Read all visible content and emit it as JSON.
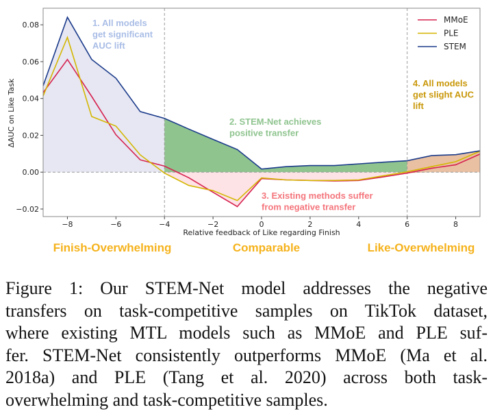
{
  "chart_data": {
    "type": "line",
    "xlabel": "Relative feedback of Like regarding Finish",
    "ylabel": "ΔAUC on Like Task",
    "xlim": [
      -9,
      9
    ],
    "ylim": [
      -0.0241,
      0.089
    ],
    "xticks": [
      -8,
      -6,
      -4,
      -2,
      0,
      2,
      4,
      6,
      8
    ],
    "xtick_labels": [
      "−8",
      "−6",
      "−4",
      "−2",
      "0",
      "2",
      "4",
      "6",
      "8"
    ],
    "yticks": [
      -0.02,
      0.0,
      0.02,
      0.04,
      0.06,
      0.08
    ],
    "ytick_labels": [
      "−0.02",
      "0.00",
      "0.02",
      "0.04",
      "0.06",
      "0.08"
    ],
    "grid": false,
    "legend_position": "top-right",
    "x": [
      -9,
      -8,
      -7,
      -6,
      -5,
      -4,
      -3,
      -2,
      -1,
      0,
      1,
      2,
      3,
      4,
      5,
      6,
      7,
      8,
      9
    ],
    "series": [
      {
        "name": "MMoE",
        "color": "#d6204e",
        "values": [
          0.0432,
          0.0612,
          0.0411,
          0.0203,
          0.0067,
          0.0033,
          -0.003,
          -0.0109,
          -0.0187,
          -0.0035,
          -0.0042,
          -0.0045,
          -0.0048,
          -0.0045,
          -0.0026,
          -0.0005,
          0.0021,
          0.004,
          0.0098
        ]
      },
      {
        "name": "PLE",
        "color": "#d4b600",
        "values": [
          0.0414,
          0.0732,
          0.0302,
          0.025,
          0.0094,
          -0.0005,
          -0.0072,
          -0.01,
          -0.0154,
          -0.0031,
          -0.0042,
          -0.0045,
          -0.0045,
          -0.0042,
          -0.002,
          0.0002,
          0.003,
          0.0057,
          0.0114
        ]
      },
      {
        "name": "STEM",
        "color": "#1a3a8a",
        "values": [
          0.0469,
          0.0841,
          0.0612,
          0.051,
          0.0329,
          0.0292,
          0.0234,
          0.0178,
          0.0123,
          0.0017,
          0.003,
          0.0036,
          0.0036,
          0.0045,
          0.0054,
          0.0062,
          0.009,
          0.0095,
          0.0116
        ]
      }
    ],
    "reference_lines": {
      "horizontal": [
        0.0
      ],
      "vertical": [
        -4,
        6
      ]
    },
    "region_fills": {
      "finish_overwhelming": "#e6e7f2",
      "stem_positive": "#8fc48f",
      "negative": "#fde2e6",
      "like_overwhelming": "#e9c0a2"
    },
    "annotations": [
      {
        "lines": [
          "1. All models",
          "get significant",
          "AUC lift"
        ],
        "color": "#a9bde6"
      },
      {
        "lines": [
          "2. STEM-Net achieves",
          "positive transfer"
        ],
        "color": "#8fc48f"
      },
      {
        "lines": [
          "3. Existing methods suffer",
          "from negative transfer"
        ],
        "color": "#f4757c"
      },
      {
        "lines": [
          "4. All models",
          "get slight AUC",
          "lift"
        ],
        "color": "#c9980a"
      }
    ],
    "category_labels": [
      "Finish-Overwhelming",
      "Comparable",
      "Like-Overwhelming"
    ]
  },
  "caption_lines": [
    "Figure 1: Our STEM-Net model addresses the negative",
    "transfers on task-competitive samples on TikTok dataset,",
    "where existing MTL models such as MMoE and PLE suf-",
    "fer. STEM-Net consistently outperforms MMoE (Ma et al.",
    "2018a) and PLE (Tang et al. 2020) across both task-",
    "overwhelming and task-competitive samples."
  ]
}
